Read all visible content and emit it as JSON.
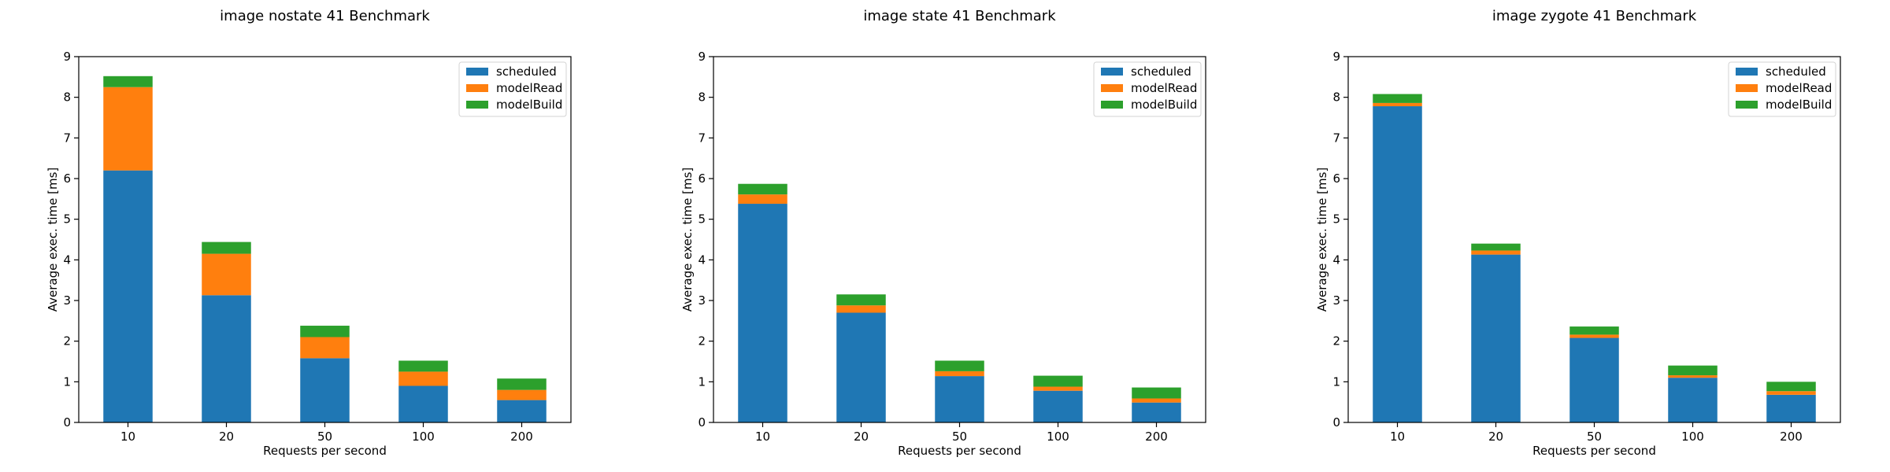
{
  "chart_data": [
    {
      "type": "bar",
      "stacked": true,
      "title": "image nostate 41 Benchmark",
      "xlabel": "Requests per second",
      "ylabel": "Average exec. time [ms]",
      "ylim": [
        0,
        9
      ],
      "yticks": [
        0,
        1,
        2,
        3,
        4,
        5,
        6,
        7,
        8,
        9
      ],
      "categories": [
        "10",
        "20",
        "50",
        "100",
        "200"
      ],
      "legend_position": "top-right",
      "grid": false,
      "series": [
        {
          "name": "scheduled",
          "color": "#1f77b4",
          "values": [
            6.2,
            3.13,
            1.58,
            0.9,
            0.55
          ]
        },
        {
          "name": "modelRead",
          "color": "#ff7f0e",
          "values": [
            2.05,
            1.02,
            0.52,
            0.35,
            0.25
          ]
        },
        {
          "name": "modelBuild",
          "color": "#2ca02c",
          "values": [
            0.27,
            0.29,
            0.28,
            0.27,
            0.28
          ]
        }
      ]
    },
    {
      "type": "bar",
      "stacked": true,
      "title": "image state 41 Benchmark",
      "xlabel": "Requests per second",
      "ylabel": "Average exec. time [ms]",
      "ylim": [
        0,
        9
      ],
      "yticks": [
        0,
        1,
        2,
        3,
        4,
        5,
        6,
        7,
        8,
        9
      ],
      "categories": [
        "10",
        "20",
        "50",
        "100",
        "200"
      ],
      "legend_position": "top-right",
      "grid": false,
      "series": [
        {
          "name": "scheduled",
          "color": "#1f77b4",
          "values": [
            5.38,
            2.7,
            1.14,
            0.78,
            0.49
          ]
        },
        {
          "name": "modelRead",
          "color": "#ff7f0e",
          "values": [
            0.23,
            0.18,
            0.12,
            0.1,
            0.1
          ]
        },
        {
          "name": "modelBuild",
          "color": "#2ca02c",
          "values": [
            0.26,
            0.27,
            0.26,
            0.27,
            0.27
          ]
        }
      ]
    },
    {
      "type": "bar",
      "stacked": true,
      "title": "image zygote 41 Benchmark",
      "xlabel": "Requests per second",
      "ylabel": "Average exec. time [ms]",
      "ylim": [
        0,
        9
      ],
      "yticks": [
        0,
        1,
        2,
        3,
        4,
        5,
        6,
        7,
        8,
        9
      ],
      "categories": [
        "10",
        "20",
        "50",
        "100",
        "200"
      ],
      "legend_position": "top-right",
      "grid": false,
      "series": [
        {
          "name": "scheduled",
          "color": "#1f77b4",
          "values": [
            7.78,
            4.13,
            2.08,
            1.1,
            0.68
          ]
        },
        {
          "name": "modelRead",
          "color": "#ff7f0e",
          "values": [
            0.08,
            0.1,
            0.08,
            0.06,
            0.09
          ]
        },
        {
          "name": "modelBuild",
          "color": "#2ca02c",
          "values": [
            0.22,
            0.17,
            0.2,
            0.24,
            0.23
          ]
        }
      ]
    }
  ]
}
